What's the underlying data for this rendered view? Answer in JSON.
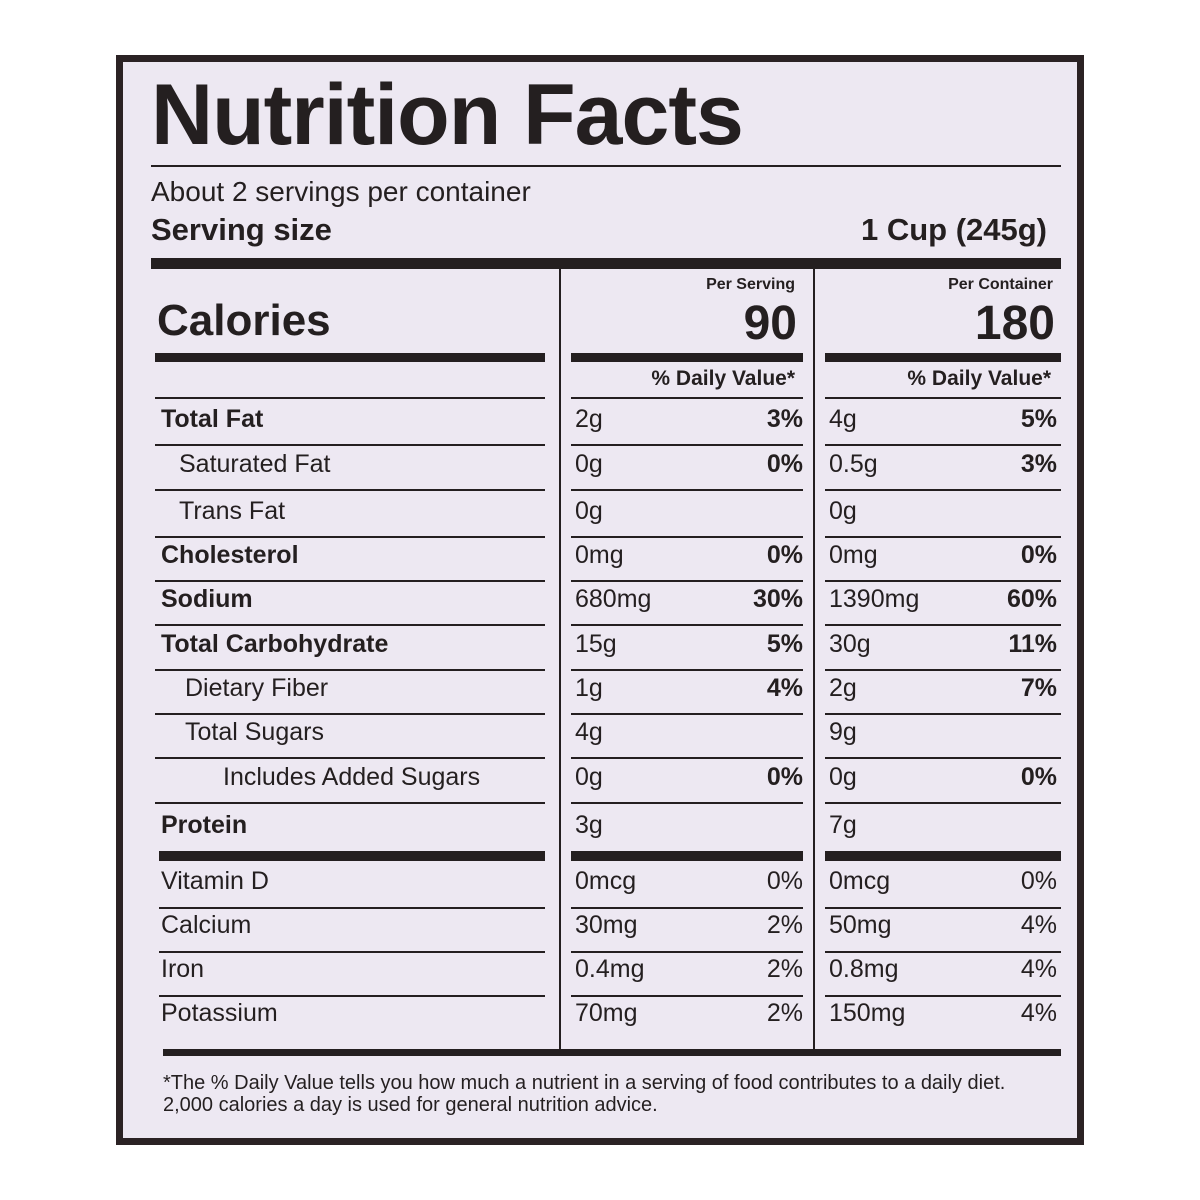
{
  "label": {
    "title": "Nutrition Facts",
    "servings_per_container": "About 2 servings per container",
    "serving_size_label": "Serving size",
    "serving_size_value": "1 Cup (245g)",
    "calories_label": "Calories",
    "per_serving_label": "Per Serving",
    "per_container_label": "Per Container",
    "calories_per_serving": "90",
    "calories_per_container": "180",
    "daily_value_header": "% Daily Value*",
    "nutrients": [
      {
        "name": "Total Fat",
        "serving_amount": "2g",
        "serving_dv": "3%",
        "container_amount": "4g",
        "container_dv": "5%"
      },
      {
        "name": "Saturated Fat",
        "serving_amount": "0g",
        "serving_dv": "0%",
        "container_amount": "0.5g",
        "container_dv": "3%"
      },
      {
        "name": "Trans Fat",
        "serving_amount": "0g",
        "serving_dv": "",
        "container_amount": "0g",
        "container_dv": ""
      },
      {
        "name": "Cholesterol",
        "serving_amount": "0mg",
        "serving_dv": "0%",
        "container_amount": "0mg",
        "container_dv": "0%"
      },
      {
        "name": "Sodium",
        "serving_amount": "680mg",
        "serving_dv": "30%",
        "container_amount": "1390mg",
        "container_dv": "60%"
      },
      {
        "name": "Total Carbohydrate",
        "serving_amount": "15g",
        "serving_dv": "5%",
        "container_amount": "30g",
        "container_dv": "11%"
      },
      {
        "name": "Dietary Fiber",
        "serving_amount": "1g",
        "serving_dv": "4%",
        "container_amount": "2g",
        "container_dv": "7%"
      },
      {
        "name": "Total Sugars",
        "serving_amount": "4g",
        "serving_dv": "",
        "container_amount": "9g",
        "container_dv": ""
      },
      {
        "name": "Includes Added Sugars",
        "serving_amount": "0g",
        "serving_dv": "0%",
        "container_amount": "0g",
        "container_dv": "0%"
      },
      {
        "name": "Protein",
        "serving_amount": "3g",
        "serving_dv": "",
        "container_amount": "7g",
        "container_dv": ""
      }
    ],
    "vitamins": [
      {
        "name": "Vitamin D",
        "serving_amount": "0mcg",
        "serving_dv": "0%",
        "container_amount": "0mcg",
        "container_dv": "0%"
      },
      {
        "name": "Calcium",
        "serving_amount": "30mg",
        "serving_dv": "2%",
        "container_amount": "50mg",
        "container_dv": "4%"
      },
      {
        "name": "Iron",
        "serving_amount": "0.4mg",
        "serving_dv": "2%",
        "container_amount": "0.8mg",
        "container_dv": "4%"
      },
      {
        "name": "Potassium",
        "serving_amount": "70mg",
        "serving_dv": "2%",
        "container_amount": "150mg",
        "container_dv": "4%"
      }
    ],
    "footnote": "*The % Daily Value tells you how much a nutrient in a serving of food contributes to a daily diet. 2,000 calories a day is used for general nutrition advice.",
    "colors": {
      "text": "#241f20",
      "background": "#ede8f2",
      "border": "#2b2224"
    }
  }
}
